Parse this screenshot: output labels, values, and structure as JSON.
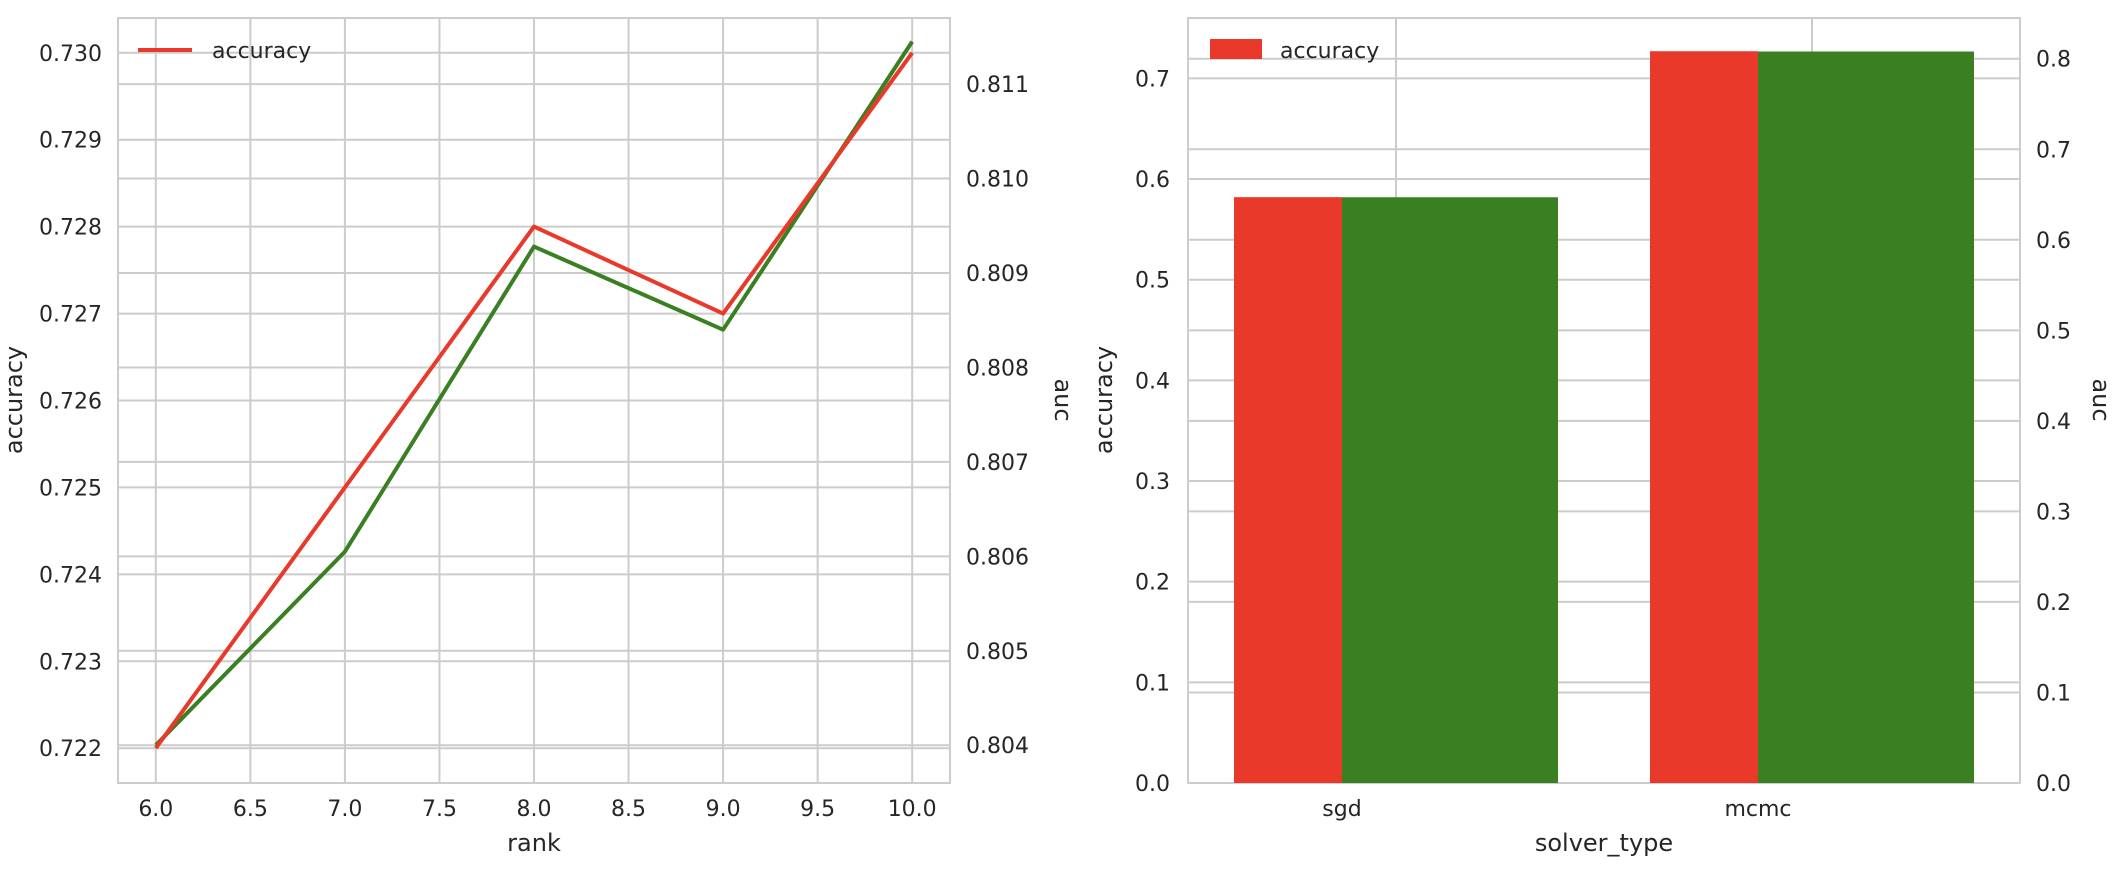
{
  "chart_data": [
    {
      "type": "line",
      "xlabel": "rank",
      "ylabel": "accuracy",
      "ylabel_right": "auc",
      "x": [
        6.0,
        7.0,
        8.0,
        9.0,
        10.0
      ],
      "xlim": [
        5.8,
        10.2
      ],
      "ylim": [
        0.7216,
        0.7304
      ],
      "ylim_right": [
        0.8036,
        0.8117
      ],
      "x_ticks": [
        "6.0",
        "6.5",
        "7.0",
        "7.5",
        "8.0",
        "8.5",
        "9.0",
        "9.5",
        "10.0"
      ],
      "y_ticks": [
        "0.722",
        "0.723",
        "0.724",
        "0.725",
        "0.726",
        "0.727",
        "0.728",
        "0.729",
        "0.730"
      ],
      "y_ticks_right": [
        "0.804",
        "0.805",
        "0.806",
        "0.807",
        "0.808",
        "0.809",
        "0.810",
        "0.811"
      ],
      "grid": true,
      "legend_position": "upper-left",
      "series": [
        {
          "name": "accuracy",
          "axis": "left",
          "color": "#e8392b",
          "values": [
            0.722,
            0.725,
            0.728,
            0.727,
            0.73
          ]
        },
        {
          "axis": "right",
          "color": "#3b7f23",
          "values": [
            0.804,
            0.80605,
            0.80928,
            0.8084,
            0.81145
          ]
        }
      ]
    },
    {
      "type": "bar",
      "xlabel": "solver_type",
      "ylabel": "accuracy",
      "ylabel_right": "auc",
      "categories": [
        "sgd",
        "mcmc"
      ],
      "ylim": [
        0.0,
        0.76
      ],
      "ylim_right": [
        0.0,
        0.845
      ],
      "y_ticks": [
        "0.0",
        "0.1",
        "0.2",
        "0.3",
        "0.4",
        "0.5",
        "0.6",
        "0.7"
      ],
      "y_ticks_right": [
        "0.0",
        "0.1",
        "0.2",
        "0.3",
        "0.4",
        "0.5",
        "0.6",
        "0.7",
        "0.8"
      ],
      "grid": true,
      "legend_position": "upper-left",
      "series": [
        {
          "name": "accuracy",
          "axis": "left",
          "color": "#e8392b",
          "values": [
            0.582,
            0.727
          ]
        },
        {
          "axis": "right",
          "color": "#3b7f23",
          "values": [
            0.647,
            0.808
          ]
        }
      ]
    }
  ]
}
